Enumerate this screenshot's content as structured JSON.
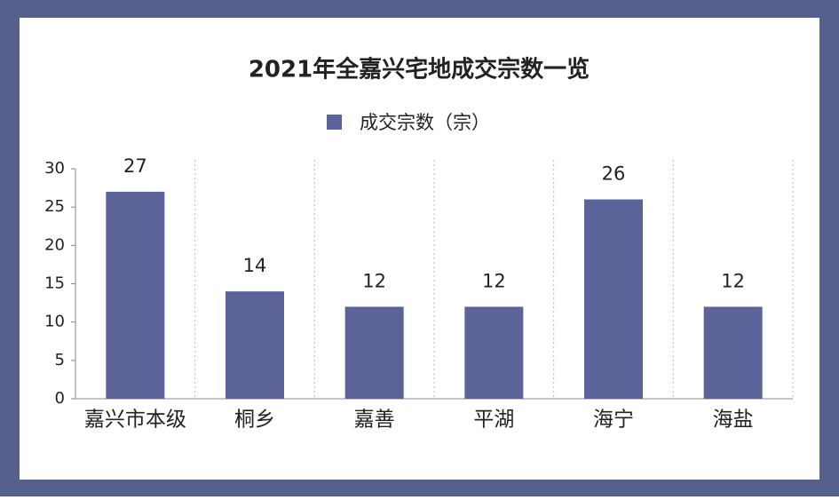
{
  "chart_data": {
    "type": "bar",
    "title": "2021年全嘉兴宅地成交宗数一览",
    "categories": [
      "嘉兴市本级",
      "桐乡",
      "嘉善",
      "平湖",
      "海宁",
      "海盐"
    ],
    "series": [
      {
        "name": "成交宗数（宗）",
        "color": "#5b6399",
        "values": [
          27,
          14,
          12,
          12,
          26,
          12
        ]
      }
    ],
    "ylim": [
      0,
      30
    ],
    "yticks": [
      0,
      5,
      10,
      15,
      20,
      25,
      30
    ],
    "legend": "top"
  }
}
